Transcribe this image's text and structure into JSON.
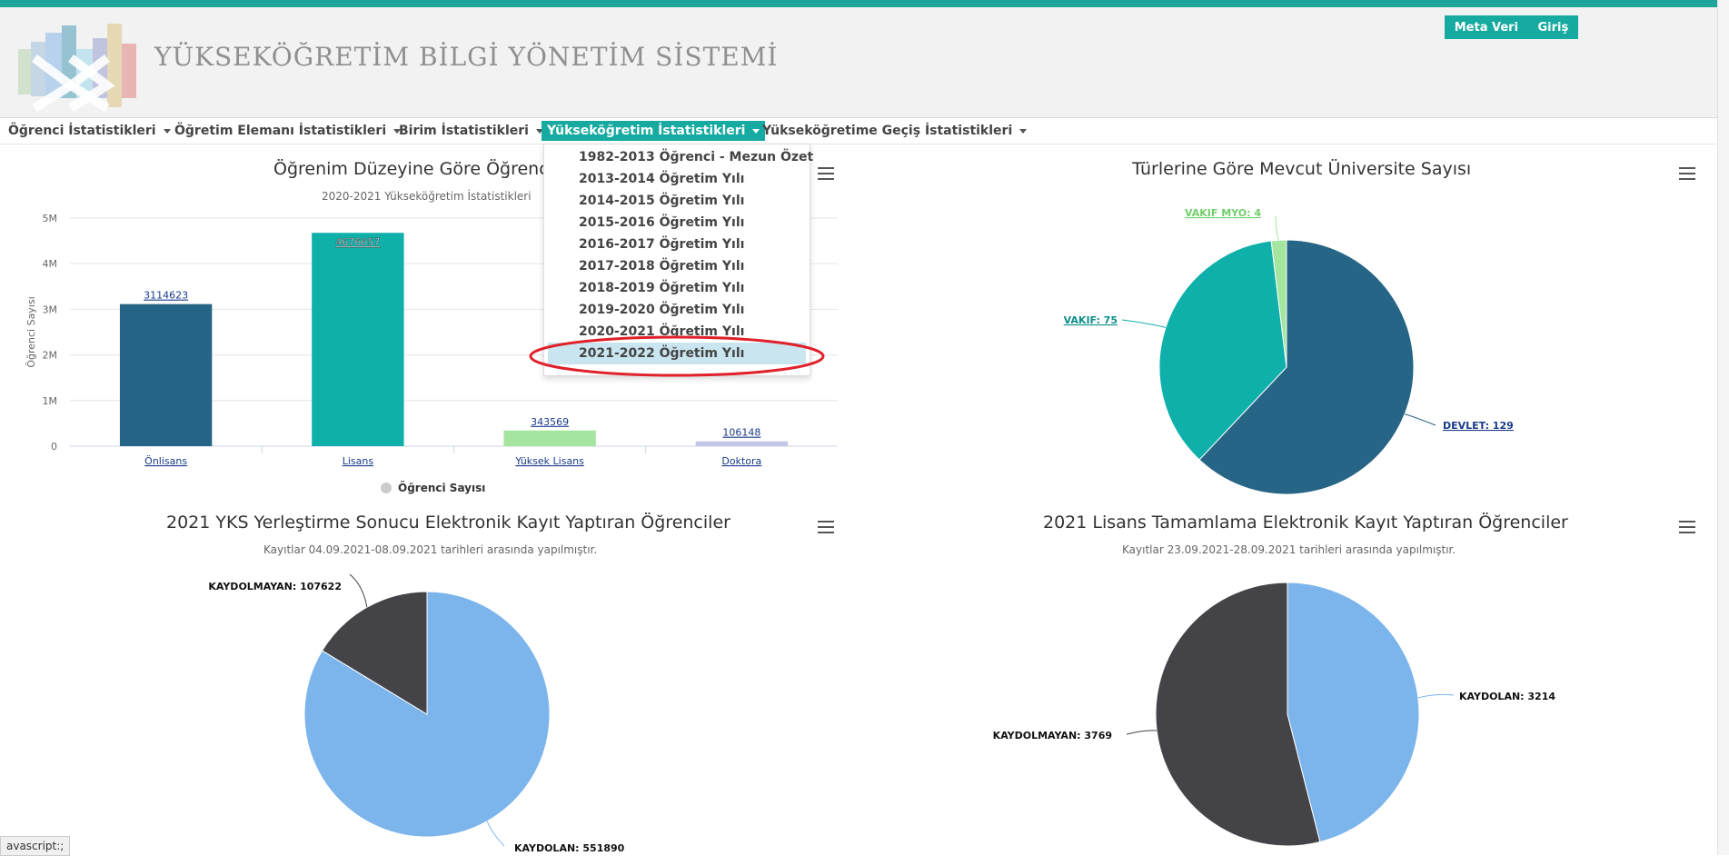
{
  "header": {
    "title": "YÜKSEKÖĞRETİM BİLGİ YÖNETİM SİSTEMİ",
    "links": [
      "Meta Veri",
      "Giriş"
    ]
  },
  "nav": {
    "items": [
      "Öğrenci İstatistikleri",
      "Öğretim Elemanı İstatistikleri",
      "Birim İstatistikleri",
      "Yükseköğretim İstatistikleri",
      "Yükseköğretime Geçiş İstatistikleri"
    ],
    "active_index": 3
  },
  "dropdown": {
    "items": [
      "1982-2013 Öğrenci - Mezun Özet",
      "2013-2014 Öğretim Yılı",
      "2014-2015 Öğretim Yılı",
      "2015-2016 Öğretim Yılı",
      "2016-2017 Öğretim Yılı",
      "2017-2018 Öğretim Yılı",
      "2018-2019 Öğretim Yılı",
      "2019-2020 Öğretim Yılı",
      "2020-2021 Öğretim Yılı",
      "2021-2022 Öğretim Yılı"
    ],
    "highlighted_index": 9
  },
  "status_bar": "avascript:;",
  "colors": {
    "teal": "#16aaa0",
    "dark_blue": "#266585",
    "teal_slice": "#0fb0aa",
    "light_green": "#a4e5a0",
    "lavender": "#c3c6e6",
    "light_blue": "#7cb4ec",
    "dark_gray": "#434348",
    "annotation_red": "#e0202a"
  },
  "chart_data": [
    {
      "type": "bar",
      "title": "Öğrenim Düzeyine Göre Öğrenci S",
      "subtitle": "2020-2021 Yükseköğretim İstatistikleri",
      "ylabel": "Öğrenci Sayısı",
      "categories": [
        "Önlisans",
        "Lisans",
        "Yüksek Lisans",
        "Doktora"
      ],
      "values": [
        3114623,
        4676657,
        343569,
        106148
      ],
      "value_labels": [
        "3114623",
        "4676657",
        "343569",
        "106148"
      ],
      "y_ticks": [
        "0",
        "1M",
        "2M",
        "3M",
        "4M",
        "5M"
      ],
      "ylim": [
        0,
        5000000
      ],
      "legend": "Öğrenci Sayısı",
      "grid": true
    },
    {
      "type": "pie",
      "title": "Türlerine Göre Mevcut Üniversite Sayısı",
      "labels": [
        "DEVLET: 129",
        "VAKIF: 75",
        "VAKIF MYO: 4"
      ],
      "values": [
        129,
        75,
        4
      ]
    },
    {
      "type": "pie",
      "title": "2021 YKS Yerleştirme Sonucu Elektronik Kayıt Yaptıran Öğrenciler",
      "subtitle": "Kayıtlar 04.09.2021-08.09.2021 tarihleri arasında yapılmıştır.",
      "labels": [
        "KAYDOLAN: 551890",
        "KAYDOLMAYAN: 107622"
      ],
      "values": [
        551890,
        107622
      ]
    },
    {
      "type": "pie",
      "title": "2021 Lisans Tamamlama Elektronik Kayıt Yaptıran Öğrenciler",
      "subtitle": "Kayıtlar 23.09.2021-28.09.2021 tarihleri arasında yapılmıştır.",
      "labels": [
        "KAYDOLAN: 3214",
        "KAYDOLMAYAN: 3769"
      ],
      "values": [
        3214,
        3769
      ]
    }
  ]
}
